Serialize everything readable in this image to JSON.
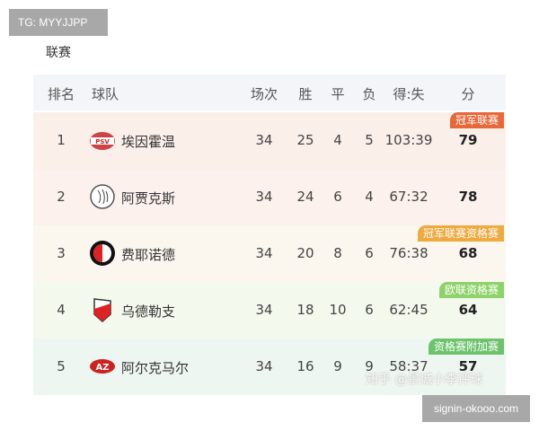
{
  "watermark_top": "TG: MYYJJPP",
  "watermark_bottom": "signin-okooo.com",
  "watermark_image": "知乎 @景城小李评球",
  "league_label": "联赛",
  "headers": {
    "rank": "排名",
    "team": "球队",
    "played": "场次",
    "won": "胜",
    "drawn": "平",
    "lost": "负",
    "goals": "得:失",
    "points": "分"
  },
  "rows": [
    {
      "rank": "1",
      "team": "埃因霍温",
      "played": "34",
      "won": "25",
      "drawn": "4",
      "lost": "5",
      "goals": "103:39",
      "points": "79",
      "badge": "冠军联赛",
      "badge_color": "#e8683a",
      "logo": "psv-logo-icon",
      "bg": "#fbefea"
    },
    {
      "rank": "2",
      "team": "阿贾克斯",
      "played": "34",
      "won": "24",
      "drawn": "6",
      "lost": "4",
      "goals": "67:32",
      "points": "78",
      "badge": "",
      "logo": "ajax-logo-icon",
      "bg": "#fcf1ec"
    },
    {
      "rank": "3",
      "team": "费耶诺德",
      "played": "34",
      "won": "20",
      "drawn": "8",
      "lost": "6",
      "goals": "76:38",
      "points": "68",
      "badge": "冠军联赛资格赛",
      "badge_color": "#eeaa3f",
      "logo": "feyenoord-logo-icon",
      "bg": "#fbf6ee"
    },
    {
      "rank": "4",
      "team": "乌德勒支",
      "played": "34",
      "won": "18",
      "drawn": "10",
      "lost": "6",
      "goals": "62:45",
      "points": "64",
      "badge": "欧联资格赛",
      "badge_color": "#8fd26a",
      "logo": "utrecht-logo-icon",
      "bg": "#f4f9ee"
    },
    {
      "rank": "5",
      "team": "阿尔克马尔",
      "played": "34",
      "won": "16",
      "drawn": "9",
      "lost": "9",
      "goals": "58:37",
      "points": "57",
      "badge": "资格赛附加赛",
      "badge_color": "#6cc36c",
      "logo": "az-logo-icon",
      "bg": "#eef6f1"
    }
  ]
}
